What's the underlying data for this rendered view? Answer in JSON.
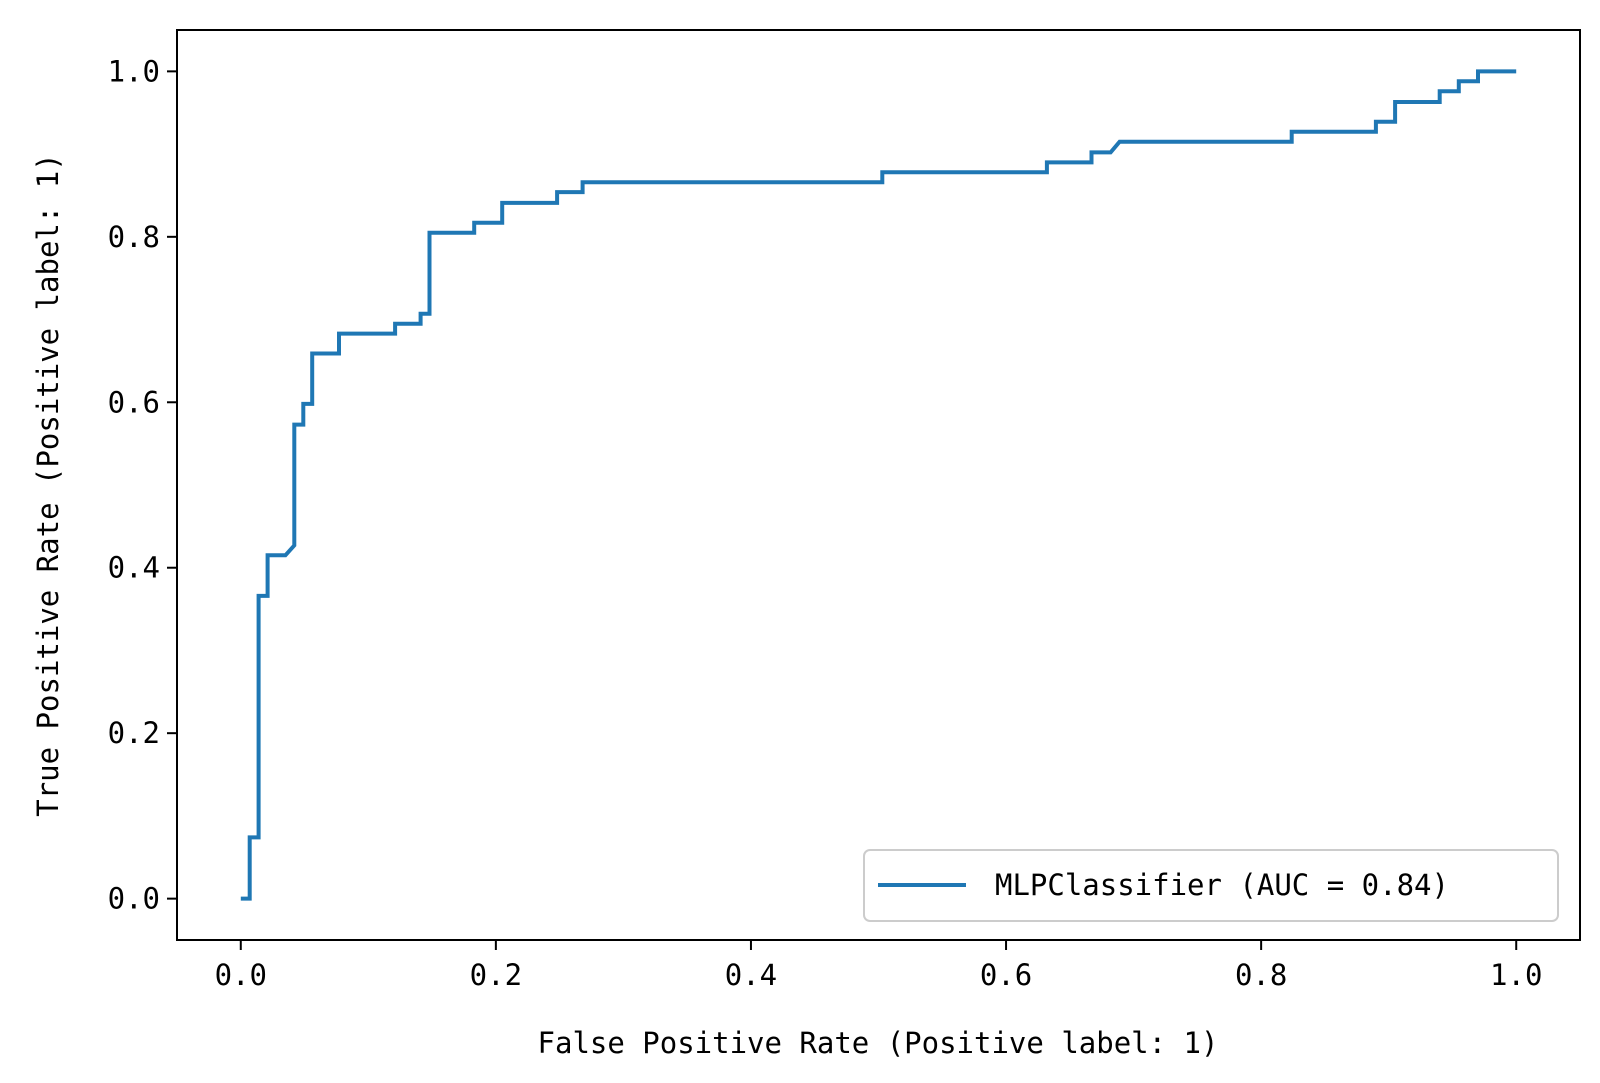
{
  "chart_data": {
    "type": "line",
    "title": "",
    "xlabel": "False Positive Rate (Positive label: 1)",
    "ylabel": "True Positive Rate (Positive label: 1)",
    "xlim": [
      -0.05,
      1.05
    ],
    "ylim": [
      -0.05,
      1.05
    ],
    "xticks": [
      0.0,
      0.2,
      0.4,
      0.6,
      0.8,
      1.0
    ],
    "xtick_labels": [
      "0.0",
      "0.2",
      "0.4",
      "0.6",
      "0.8",
      "1.0"
    ],
    "yticks": [
      0.0,
      0.2,
      0.4,
      0.6,
      0.8,
      1.0
    ],
    "ytick_labels": [
      "0.0",
      "0.2",
      "0.4",
      "0.6",
      "0.8",
      "1.0"
    ],
    "grid": false,
    "legend_position": "lower-right",
    "series": [
      {
        "name": "MLPClassifier (AUC = 0.84)",
        "color": "#1f77b4",
        "x": [
          0.0,
          0.007,
          0.007,
          0.014,
          0.014,
          0.021,
          0.021,
          0.035,
          0.042,
          0.042,
          0.049,
          0.049,
          0.056,
          0.056,
          0.077,
          0.077,
          0.121,
          0.121,
          0.141,
          0.141,
          0.148,
          0.148,
          0.183,
          0.183,
          0.205,
          0.205,
          0.248,
          0.248,
          0.268,
          0.268,
          0.503,
          0.503,
          0.632,
          0.632,
          0.667,
          0.667,
          0.682,
          0.689,
          0.824,
          0.824,
          0.89,
          0.89,
          0.905,
          0.905,
          0.94,
          0.94,
          0.955,
          0.955,
          0.97,
          0.97,
          1.0
        ],
        "y": [
          0.0,
          0.0,
          0.074,
          0.074,
          0.366,
          0.366,
          0.415,
          0.415,
          0.427,
          0.573,
          0.573,
          0.598,
          0.598,
          0.659,
          0.659,
          0.683,
          0.683,
          0.695,
          0.695,
          0.707,
          0.707,
          0.805,
          0.805,
          0.817,
          0.817,
          0.841,
          0.841,
          0.854,
          0.854,
          0.866,
          0.866,
          0.878,
          0.878,
          0.89,
          0.89,
          0.902,
          0.902,
          0.915,
          0.915,
          0.927,
          0.927,
          0.939,
          0.939,
          0.963,
          0.963,
          0.976,
          0.976,
          0.988,
          0.988,
          1.0,
          1.0
        ]
      }
    ]
  }
}
